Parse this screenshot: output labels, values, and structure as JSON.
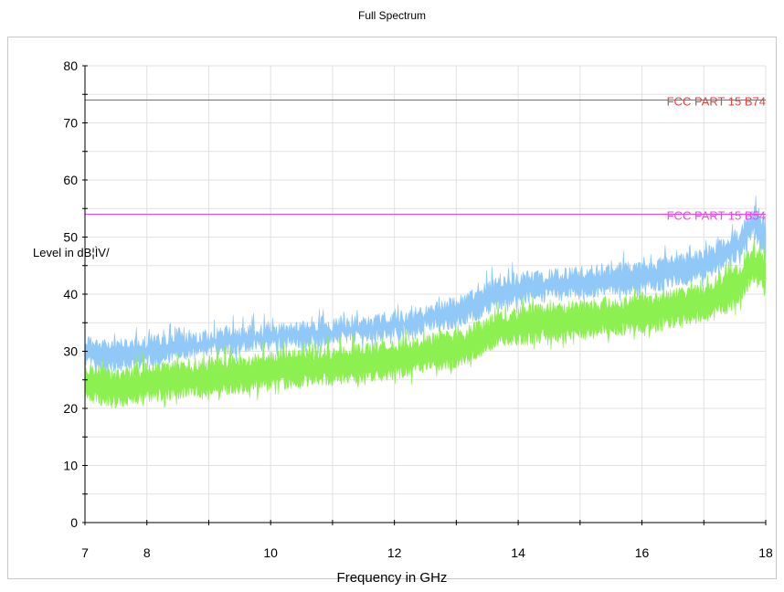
{
  "chart_data": {
    "type": "line",
    "title": "Full Spectrum",
    "xlabel": "Frequency in GHz",
    "ylabel": "Level in dB¦ÌV/",
    "xlim": [
      7,
      18
    ],
    "ylim": [
      0,
      80
    ],
    "x_ticks": [
      "7",
      "8",
      "10",
      "12",
      "14",
      "16",
      "18"
    ],
    "y_ticks": [
      "0",
      "10",
      "20",
      "30",
      "40",
      "50",
      "60",
      "70",
      "80"
    ],
    "grid": true,
    "limit_lines": [
      {
        "label": "FCC PART 15 B74",
        "value": 74,
        "color": "#e8403c"
      },
      {
        "label": "FCC PART 15 B54",
        "value": 54,
        "color": "#ee44ee"
      }
    ],
    "series": [
      {
        "color": "#90c8f8",
        "x": [
          7,
          7.5,
          8,
          9,
          10,
          11,
          12,
          12.5,
          13,
          13.3,
          13.6,
          14,
          15,
          16,
          16.5,
          17,
          17.3,
          17.6,
          17.8,
          18
        ],
        "min": [
          27,
          26,
          27,
          29,
          30,
          31,
          32,
          33,
          34,
          35,
          37,
          38,
          39,
          40,
          41,
          42,
          44,
          46,
          50,
          45
        ],
        "max": [
          33,
          32,
          33,
          34,
          35,
          36,
          37,
          38,
          40,
          41,
          43,
          44,
          45,
          46,
          47,
          48,
          50,
          52,
          56,
          53
        ]
      },
      {
        "color": "#8cf050",
        "x": [
          7,
          7.5,
          8,
          9,
          10,
          11,
          12,
          12.5,
          13,
          13.3,
          13.6,
          14,
          15,
          16,
          16.5,
          17,
          17.3,
          17.6,
          17.8,
          18
        ],
        "min": [
          21,
          20,
          21,
          22,
          23,
          24,
          25,
          26,
          27,
          28,
          30,
          31,
          32,
          33,
          34,
          35,
          36,
          38,
          42,
          40
        ],
        "max": [
          28,
          27,
          28,
          29,
          30,
          31,
          32,
          33,
          34,
          35,
          37,
          38,
          39,
          40,
          41,
          42,
          44,
          46,
          49,
          47
        ]
      }
    ]
  }
}
